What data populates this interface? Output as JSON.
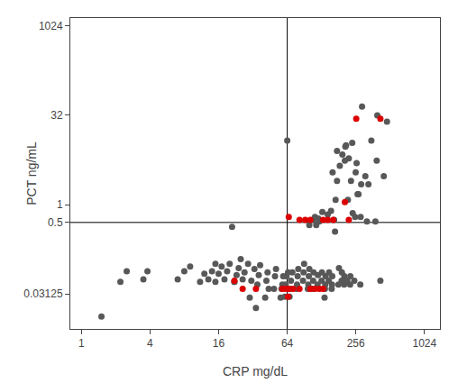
{
  "chart_data": {
    "type": "scatter",
    "xlabel": "CRP mg/dL",
    "ylabel": "PCT ng/mL",
    "log": true,
    "grid": false,
    "marker": "circle",
    "xlim": [
      0.8,
      1400
    ],
    "ylim": [
      0.008,
      1400
    ],
    "xticks": [
      1,
      4,
      16,
      64,
      256,
      1024
    ],
    "yticks": [
      0.03125,
      0.5,
      1,
      32,
      1024
    ],
    "x_line": 64,
    "y_line": 0.5,
    "series": [
      {
        "color": "#585858",
        "x": [
          1.5,
          2.2,
          2.5,
          3.5,
          3.8,
          7,
          8,
          9,
          11,
          12,
          13,
          14,
          15,
          15,
          16,
          17,
          18,
          19,
          20,
          21,
          22,
          23,
          24,
          25,
          26,
          27,
          29,
          22,
          30,
          31,
          33,
          35,
          36,
          37,
          34,
          42,
          43,
          44,
          41,
          50,
          51,
          49,
          58,
          59,
          57,
          56,
          62,
          63,
          61,
          65,
          68,
          69,
          71,
          67,
          78,
          79,
          80,
          77,
          88,
          89,
          90,
          98,
          99,
          100,
          97,
          108,
          109,
          64,
          107,
          118,
          119,
          128,
          129,
          138,
          139,
          137,
          136,
          148,
          149,
          158,
          159,
          157,
          100,
          115,
          130,
          145,
          155,
          165,
          120,
          170,
          175,
          180,
          182,
          185,
          192,
          193,
          195,
          202,
          203,
          205,
          207,
          215,
          218,
          222,
          228,
          229,
          232,
          238,
          248,
          252,
          255,
          108,
          112,
          122,
          168,
          280,
          282,
          285,
          290,
          320,
          330,
          380,
          390,
          395,
          270,
          310,
          350,
          420,
          450,
          480,
          160,
          175,
          210,
          240,
          260,
          265
        ],
        "values": [
          0.013,
          0.05,
          0.075,
          0.055,
          0.075,
          0.055,
          0.075,
          0.09,
          0.05,
          0.068,
          0.055,
          0.075,
          0.1,
          0.05,
          0.068,
          0.09,
          0.055,
          0.075,
          0.1,
          0.42,
          0.05,
          0.065,
          0.085,
          0.12,
          0.055,
          0.072,
          0.1,
          0.05,
          0.027,
          0.052,
          0.082,
          0.045,
          0.065,
          0.095,
          0.018,
          0.052,
          0.072,
          0.038,
          0.027,
          0.062,
          0.082,
          0.038,
          0.045,
          0.062,
          0.038,
          0.027,
          0.045,
          0.062,
          0.028,
          0.072,
          0.038,
          0.052,
          0.072,
          0.028,
          0.045,
          0.062,
          0.082,
          0.038,
          0.052,
          0.072,
          0.1,
          0.045,
          0.062,
          0.082,
          0.038,
          0.052,
          0.072,
          12.0,
          0.038,
          0.045,
          0.065,
          0.052,
          0.072,
          0.045,
          0.062,
          0.038,
          0.027,
          0.052,
          0.072,
          0.045,
          0.062,
          0.038,
          0.45,
          0.45,
          0.75,
          0.68,
          0.78,
          0.55,
          0.58,
          1.2,
          2.5,
          0.045,
          0.085,
          4.5,
          0.052,
          0.072,
          7.0,
          0.045,
          0.062,
          5.5,
          9.5,
          0.052,
          1.2,
          6.0,
          0.045,
          0.062,
          2.5,
          11.0,
          0.052,
          0.62,
          3.5,
          0.55,
          0.62,
          0.52,
          0.35,
          0.045,
          0.62,
          2.2,
          45.0,
          0.52,
          2.2,
          0.52,
          5.5,
          32.0,
          1.5,
          3.0,
          12.0,
          0.052,
          3.0,
          25.0,
          3.5,
          8.0,
          10.0,
          0.72,
          5.0,
          1.5
        ]
      },
      {
        "color": "#dd0000",
        "x": [
          22,
          26,
          34,
          58,
          62,
          66,
          66,
          65,
          72,
          82,
          82,
          92,
          102,
          102,
          112,
          122,
          132,
          132,
          145,
          162,
          205,
          222,
          258,
          420
        ],
        "values": [
          0.052,
          0.038,
          0.038,
          0.038,
          0.038,
          0.62,
          0.038,
          0.028,
          0.038,
          0.038,
          0.55,
          0.55,
          0.55,
          0.038,
          0.038,
          0.038,
          0.55,
          0.038,
          0.55,
          0.55,
          1.1,
          0.55,
          28.0,
          28.0
        ]
      }
    ]
  }
}
